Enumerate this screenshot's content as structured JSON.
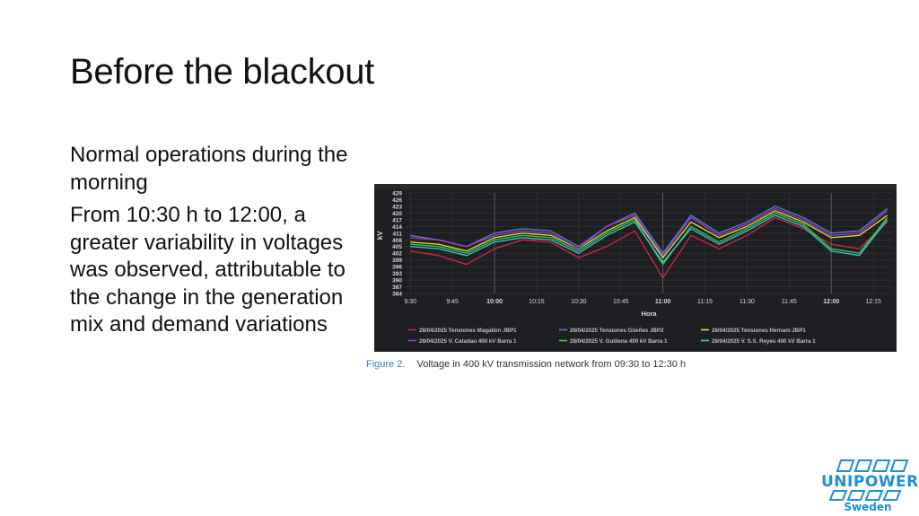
{
  "slide": {
    "title": "Before the blackout",
    "bullets": [
      "Normal operations during the morning",
      "From 10:30 h to 12:00, a greater variability in voltages was observed, attributable to the change in the generation mix and demand variations"
    ]
  },
  "caption": {
    "figure_label": "Figure 2.",
    "text": "Voltage in 400 kV transmission network from 09:30 to 12:30 h"
  },
  "logo": {
    "name": "UNIPOWER",
    "sub": "Sweden"
  },
  "colors": {
    "chart_bg": "#1e1f22",
    "grid": "#3a3b3f",
    "series": [
      "#d6264a",
      "#5b7fd6",
      "#e8e23a",
      "#9b3fc9",
      "#3fcf3f",
      "#38c8d8"
    ]
  },
  "chart_data": {
    "type": "line",
    "title": "",
    "xlabel": "Hora",
    "ylabel": "kV",
    "ylim": [
      384,
      429
    ],
    "yticks": [
      "429",
      "426",
      "423",
      "420",
      "417",
      "414",
      "411",
      "408",
      "405",
      "402",
      "399",
      "396",
      "393",
      "390",
      "387",
      "384"
    ],
    "xticks": [
      "9:30",
      "9:45",
      "10:00",
      "10:15",
      "10:30",
      "10:45",
      "11:00",
      "11:15",
      "11:30",
      "11:45",
      "12:00",
      "12:15"
    ],
    "xticks_bold": [
      "10:00",
      "11:00",
      "12:00"
    ],
    "xlim": [
      "9:28",
      "12:22"
    ],
    "grid": true,
    "legend_position": "bottom",
    "x": [
      "9:30",
      "9:40",
      "9:50",
      "10:00",
      "10:10",
      "10:20",
      "10:30",
      "10:40",
      "10:50",
      "11:00",
      "11:10",
      "11:20",
      "11:30",
      "11:40",
      "11:50",
      "12:00",
      "12:10",
      "12:20"
    ],
    "series": [
      {
        "name": "28/04/2025 Tensiones Magallón JBP1",
        "values": [
          403,
          401,
          397,
          404,
          408,
          407,
          400,
          405,
          412,
          391,
          410,
          404,
          410,
          418,
          413,
          406,
          404,
          416
        ]
      },
      {
        "name": "28/04/2025 Tensiones Güeñes JBP2",
        "values": [
          410,
          408,
          405,
          411,
          413,
          412,
          405,
          414,
          420,
          402,
          419,
          411,
          416,
          423,
          418,
          411,
          412,
          422
        ]
      },
      {
        "name": "28/04/2025 Tensiones Hernani JBP1",
        "values": [
          407,
          406,
          403,
          409,
          411,
          410,
          404,
          412,
          418,
          400,
          416,
          409,
          414,
          421,
          416,
          409,
          410,
          419
        ]
      },
      {
        "name": "28/04/2025 V. Catadau 400 kV Barra 1",
        "values": [
          409,
          408,
          405,
          410,
          412,
          411,
          404,
          414,
          419,
          401,
          418,
          410,
          415,
          422,
          417,
          410,
          411,
          421
        ]
      },
      {
        "name": "28/04/2025 V. Guillena 400 kV Barra 1",
        "values": [
          406,
          405,
          402,
          408,
          410,
          409,
          403,
          411,
          417,
          397,
          414,
          407,
          413,
          420,
          415,
          404,
          402,
          418
        ]
      },
      {
        "name": "28/04/2025 V. S.S. Reyes 400 kV Barra 1",
        "values": [
          405,
          404,
          401,
          407,
          409,
          408,
          402,
          410,
          416,
          398,
          413,
          406,
          412,
          419,
          414,
          403,
          401,
          417
        ]
      }
    ]
  }
}
